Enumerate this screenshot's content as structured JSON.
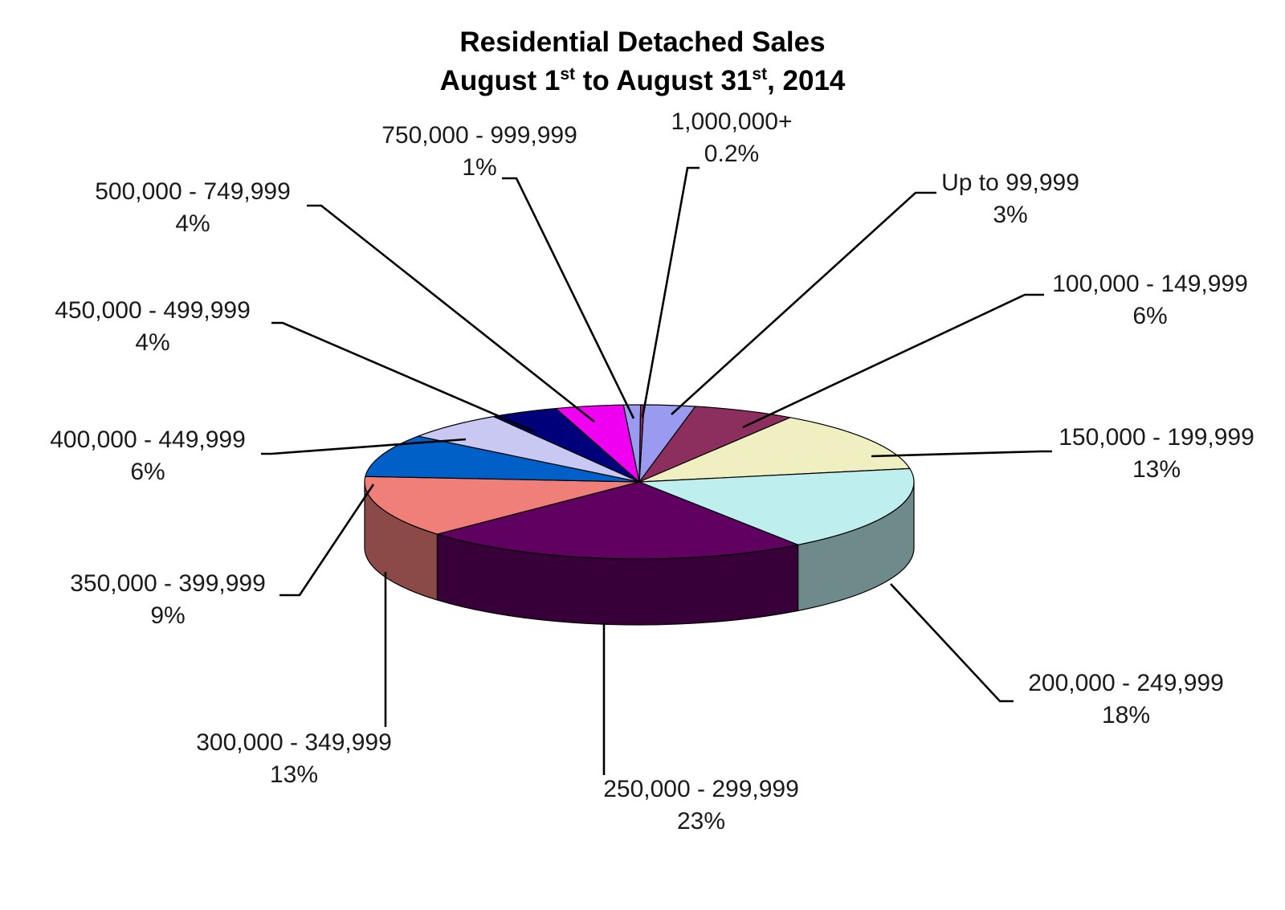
{
  "chart_data": {
    "type": "pie",
    "title_line1": "Residential Detached Sales",
    "title_line2": {
      "part1": "August 1",
      "sup1": "st",
      "part2": " to August 31",
      "sup2": "st",
      "part3": ", 2014"
    },
    "slices": [
      {
        "label": "Up to 99,999",
        "percent_label": "3%",
        "value": 3,
        "color": "#9a9af0"
      },
      {
        "label": "100,000 - 149,999",
        "percent_label": "6%",
        "value": 6,
        "color": "#8c2f5e"
      },
      {
        "label": "150,000 - 199,999",
        "percent_label": "13%",
        "value": 13,
        "color": "#efefc2"
      },
      {
        "label": "200,000 - 249,999",
        "percent_label": "18%",
        "value": 18,
        "color": "#bfeeee"
      },
      {
        "label": "250,000 - 299,999",
        "percent_label": "23%",
        "value": 23,
        "color": "#600060"
      },
      {
        "label": "300,000 - 349,999",
        "percent_label": "13%",
        "value": 13,
        "color": "#f07f7a"
      },
      {
        "label": "350,000 - 399,999",
        "percent_label": "9%",
        "value": 9,
        "color": "#0060c8"
      },
      {
        "label": "400,000 - 449,999",
        "percent_label": "6%",
        "value": 6,
        "color": "#c8c8f2"
      },
      {
        "label": "450,000 - 499,999",
        "percent_label": "4%",
        "value": 4,
        "color": "#00007a"
      },
      {
        "label": "500,000 - 749,999",
        "percent_label": "4%",
        "value": 4,
        "color": "#f000f0"
      },
      {
        "label": "750,000 - 999,999",
        "percent_label": "1%",
        "value": 1,
        "color": "#9a9af0"
      },
      {
        "label": "1,000,000+",
        "percent_label": "0.2%",
        "value": 0.2,
        "color": "#8c2f5e"
      }
    ],
    "legend": "none"
  }
}
